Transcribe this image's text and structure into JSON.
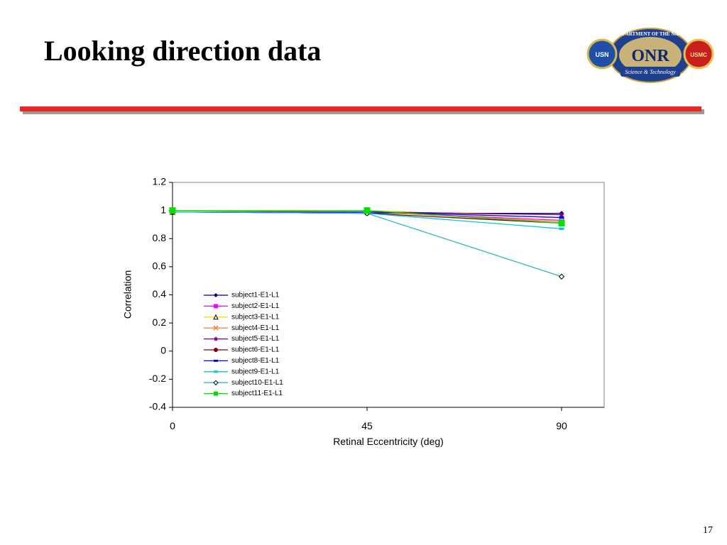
{
  "slide": {
    "title": "Looking direction data",
    "page_number": "17"
  },
  "logo": {
    "ring_text": "DEPARTMENT OF THE NAVY",
    "center_text": "ONR",
    "banner_text": "Science & Technology",
    "left_seal_text": "USN",
    "right_seal_text": "USMC"
  },
  "colors": {
    "title_rule": "#e8251f",
    "rule_shadow": "#9a9a9a"
  },
  "chart_data": {
    "type": "line",
    "title": "",
    "xlabel": "Retinal Eccentricity (deg)",
    "ylabel": "Correlation",
    "categories": [
      "0",
      "45",
      "90"
    ],
    "x": [
      0,
      45,
      90
    ],
    "ylim": [
      -0.4,
      1.2
    ],
    "yticks": [
      -0.4,
      -0.2,
      0,
      0.2,
      0.4,
      0.6,
      0.8,
      1,
      1.2
    ],
    "ytick_labels": [
      "-0.4",
      "-0.2",
      "0",
      "0.2",
      "0.4",
      "0.6",
      "0.8",
      "1",
      "1.2"
    ],
    "grid": false,
    "legend_position": "inside-left",
    "series": [
      {
        "name": "subject1-E1-L1",
        "color": "#000080",
        "marker": "diamond",
        "values": [
          0.99,
          0.98,
          0.98
        ]
      },
      {
        "name": "subject2-E1-L1",
        "color": "#ff00ff",
        "marker": "square",
        "values": [
          0.99,
          0.99,
          0.93
        ]
      },
      {
        "name": "subject3-E1-L1",
        "color": "#e8e800",
        "marker": "triangle-open",
        "values": [
          0.99,
          1.0,
          0.95
        ]
      },
      {
        "name": "subject4-E1-L1",
        "color": "#ff8040",
        "marker": "x",
        "values": [
          0.99,
          0.99,
          0.92
        ]
      },
      {
        "name": "subject5-E1-L1",
        "color": "#800080",
        "marker": "star",
        "values": [
          0.99,
          0.99,
          0.97
        ]
      },
      {
        "name": "subject6-E1-L1",
        "color": "#800000",
        "marker": "circle",
        "values": [
          0.99,
          0.98,
          0.91
        ]
      },
      {
        "name": "subject8-E1-L1",
        "color": "#0000ff",
        "marker": "dash",
        "values": [
          0.99,
          0.99,
          0.95
        ]
      },
      {
        "name": "subject9-E1-L1",
        "color": "#00c8e8",
        "marker": "dash",
        "values": [
          0.99,
          0.98,
          0.87
        ]
      },
      {
        "name": "subject10-E1-L1",
        "color": "#33b5c8",
        "marker": "diamond-open",
        "values": [
          0.99,
          0.98,
          0.53
        ]
      },
      {
        "name": "subject11-E1-L1",
        "color": "#00e000",
        "marker": "square",
        "values": [
          1.0,
          1.0,
          0.91
        ]
      }
    ]
  }
}
